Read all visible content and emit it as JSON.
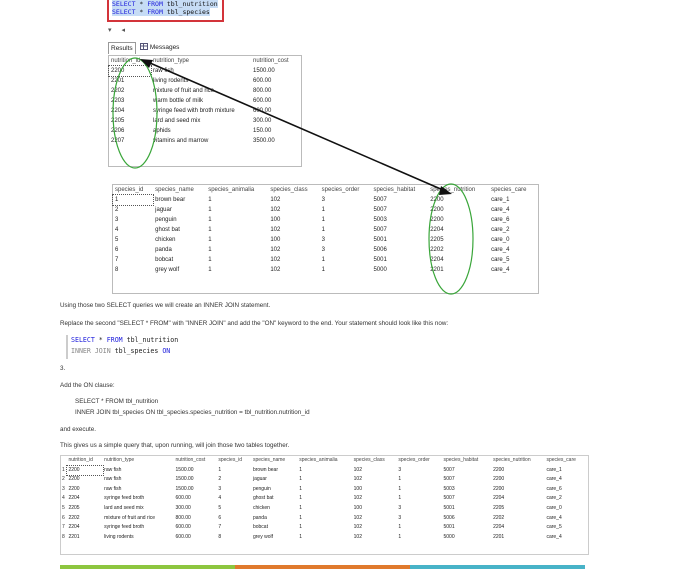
{
  "query_box": {
    "line1": {
      "kw1": "SELECT",
      "star": " * ",
      "kw2": "FROM",
      "table": " tbl_nutrition"
    },
    "line2": {
      "kw1": "SELECT",
      "star": " * ",
      "kw2": "FROM",
      "table": " tbl_species"
    }
  },
  "toolbar": {
    "dropdown_glyph": "▾",
    "scroll_glyph": "◂"
  },
  "tabs": {
    "results": "Results",
    "messages": "Messages"
  },
  "nutrition_table": {
    "columns": [
      "nutrition_id",
      "nutrition_type",
      "nutrition_cost"
    ],
    "rows": [
      [
        "2200",
        "raw fish",
        "1500.00"
      ],
      [
        "2201",
        "living rodents",
        "600.00"
      ],
      [
        "2202",
        "mixture of fruit and rice",
        "800.00"
      ],
      [
        "2203",
        "warm bottle of milk",
        "600.00"
      ],
      [
        "2204",
        "syringe feed with broth mixture",
        "600.00"
      ],
      [
        "2205",
        "lard and seed mix",
        "300.00"
      ],
      [
        "2206",
        "aphids",
        "150.00"
      ],
      [
        "2207",
        "vitamins and marrow",
        "3500.00"
      ]
    ]
  },
  "species_table": {
    "columns": [
      "species_id",
      "species_name",
      "species_animalia",
      "species_class",
      "species_order",
      "species_habitat",
      "species_nutrition",
      "species_care"
    ],
    "rows": [
      [
        "1",
        "brown bear",
        "1",
        "102",
        "3",
        "5007",
        "2200",
        "care_1"
      ],
      [
        "2",
        "jaguar",
        "1",
        "102",
        "1",
        "5007",
        "2200",
        "care_4"
      ],
      [
        "3",
        "penguin",
        "1",
        "100",
        "1",
        "5003",
        "2200",
        "care_6"
      ],
      [
        "4",
        "ghost bat",
        "1",
        "102",
        "1",
        "5007",
        "2204",
        "care_2"
      ],
      [
        "5",
        "chicken",
        "1",
        "100",
        "3",
        "5001",
        "2205",
        "care_0"
      ],
      [
        "6",
        "panda",
        "1",
        "102",
        "3",
        "5006",
        "2202",
        "care_4"
      ],
      [
        "7",
        "bobcat",
        "1",
        "102",
        "1",
        "5001",
        "2204",
        "care_5"
      ],
      [
        "8",
        "grey wolf",
        "1",
        "102",
        "1",
        "5000",
        "2201",
        "care_4"
      ]
    ]
  },
  "text": {
    "p1": "Using those two SELECT queries we will create an INNER JOIN statement.",
    "p2": "Replace the second \"SELECT * FROM\" with \"INNER JOIN\" and add the \"ON\" keyword to the end. Your statement should look like this now:",
    "step": "3.",
    "p3": "Add the ON clause:",
    "code_a": "SELECT * FROM tbl_nutrition",
    "code_b": "INNER JOIN tbl_species ON tbl_species.species_nutrition = tbl_nutrition.nutrition_id",
    "p4": "and execute.",
    "p5": "This gives us a simple query that, upon running, will join those two tables together."
  },
  "inner_join_snippet": {
    "l1_kw1": "SELECT",
    "l1_star": " * ",
    "l1_kw2": "FROM",
    "l1_table": " tbl_nutrition",
    "l2_kw": "INNER JOIN",
    "l2_table": " tbl_species",
    "l2_on": " ON"
  },
  "joined_table": {
    "columns": [
      "nutrition_id",
      "nutrition_type",
      "nutrition_cost",
      "species_id",
      "species_name",
      "species_animalia",
      "species_class",
      "species_order",
      "species_habitat",
      "species_nutrition",
      "species_care"
    ],
    "rows": [
      [
        "1",
        "2200",
        "raw fish",
        "1500.00",
        "1",
        "brown bear",
        "1",
        "102",
        "3",
        "5007",
        "2200",
        "care_1"
      ],
      [
        "2",
        "2200",
        "raw fish",
        "1500.00",
        "2",
        "jaguar",
        "1",
        "102",
        "1",
        "5007",
        "2200",
        "care_4"
      ],
      [
        "3",
        "2200",
        "raw fish",
        "1500.00",
        "3",
        "penguin",
        "1",
        "100",
        "1",
        "5003",
        "2200",
        "care_6"
      ],
      [
        "4",
        "2204",
        "syringe feed broth",
        "600.00",
        "4",
        "ghost bat",
        "1",
        "102",
        "1",
        "5007",
        "2204",
        "care_2"
      ],
      [
        "5",
        "2205",
        "lard and seed mix",
        "300.00",
        "5",
        "chicken",
        "1",
        "100",
        "3",
        "5001",
        "2205",
        "care_0"
      ],
      [
        "6",
        "2202",
        "mixture of fruit and rice",
        "800.00",
        "6",
        "panda",
        "1",
        "102",
        "3",
        "5006",
        "2202",
        "care_4"
      ],
      [
        "7",
        "2204",
        "syringe feed broth",
        "600.00",
        "7",
        "bobcat",
        "1",
        "102",
        "1",
        "5001",
        "2204",
        "care_5"
      ],
      [
        "8",
        "2201",
        "living rodents",
        "600.00",
        "8",
        "grey wolf",
        "1",
        "102",
        "1",
        "5000",
        "2201",
        "care_4"
      ]
    ]
  },
  "colors": {
    "annotation_green": "#3aa63a",
    "arrow": "#111111",
    "sql_box_border": "#d3343a",
    "bar_green": "#8dc63f",
    "bar_orange": "#e07a2d",
    "bar_blue": "#48b3c8"
  }
}
